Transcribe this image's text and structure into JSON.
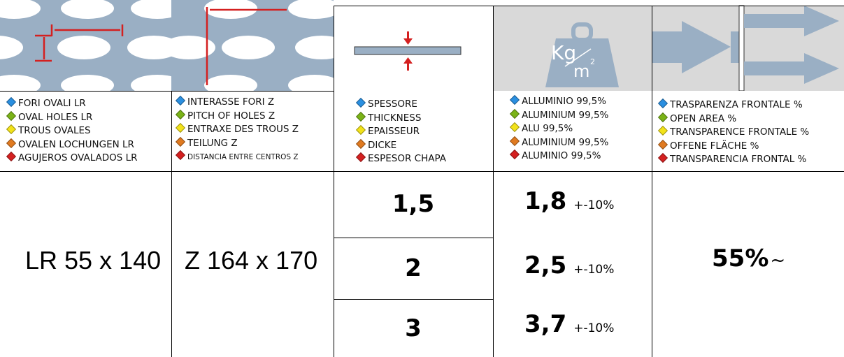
{
  "columns": [
    {
      "lines": [
        "FORI OVALI LR",
        "OVAL HOLES LR",
        "TROUS OVALES",
        "OVALEN LOCHUNGEN LR",
        "AGUJEROS OVALADOS LR"
      ]
    },
    {
      "lines": [
        "INTERASSE FORI Z",
        "PITCH OF HOLES Z",
        "ENTRAXE DES TROUS Z",
        "TEILUNG Z",
        "DISTANCIA ENTRE CENTROS Z"
      ]
    },
    {
      "lines": [
        "SPESSORE",
        "THICKNESS",
        "EPAISSEUR",
        "DICKE",
        "ESPESOR CHAPA"
      ]
    },
    {
      "lines": [
        "ALLUMINIO 99,5%",
        "ALUMINIUM 99,5%",
        "ALU 99,5%",
        "ALUMINIUM 99,5%",
        "ALUMINIO 99,5%"
      ]
    },
    {
      "lines": [
        "TRASPARENZA FRONTALE %",
        "OPEN AREA %",
        "TRANSPARENCE FRONTALE %",
        "OFFENE FLÄCHE %",
        "TRANSPARENCIA FRONTAL %"
      ]
    }
  ],
  "weight_icon": {
    "unit_top": "Kg",
    "unit_bottom": "m",
    "exponent": "2"
  },
  "holes": "LR 55 x 140",
  "pitch": "Z 164 x 170",
  "rows": [
    {
      "thickness": "1,5",
      "weight": "1,8",
      "tolerance": "+-10%"
    },
    {
      "thickness": "2",
      "weight": "2,5",
      "tolerance": "+-10%"
    },
    {
      "thickness": "3",
      "weight": "3,7",
      "tolerance": "+-10%"
    }
  ],
  "open_area": {
    "value": "55%",
    "suffix": "~"
  }
}
